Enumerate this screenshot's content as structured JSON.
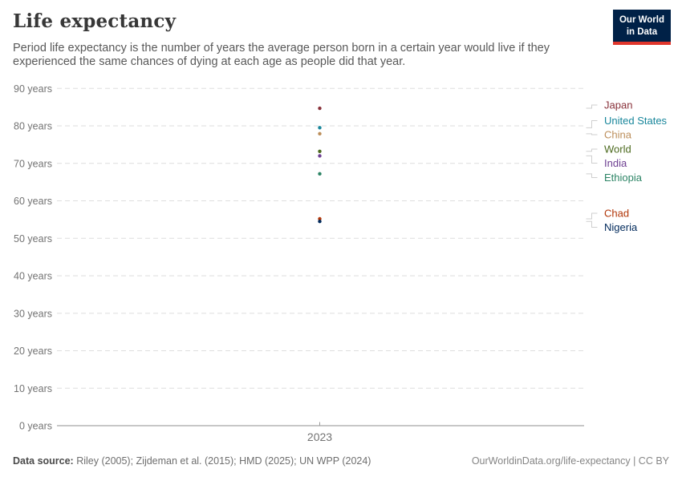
{
  "header": {
    "title": "Life expectancy",
    "subtitle": "Period life expectancy is the number of years the average person born in a certain year would live if they experienced the same chances of dying at each age as people did that year.",
    "logo": {
      "line1": "Our World",
      "line2": "in Data",
      "bg_color": "#002147",
      "accent_color": "#E0362C"
    }
  },
  "chart_data": {
    "type": "scatter",
    "title": "Life expectancy",
    "x": [
      2023
    ],
    "x_tick_label": "2023",
    "yticks": [
      0,
      10,
      20,
      30,
      40,
      50,
      60,
      70,
      80,
      90
    ],
    "ytick_suffix": " years",
    "ylim": [
      0,
      90
    ],
    "grid": "horizontal dashed",
    "legend_position": "right-entity-labels",
    "series": [
      {
        "name": "Japan",
        "value": 84.7,
        "color": "#883039"
      },
      {
        "name": "United States",
        "value": 79.5,
        "color": "#18869B"
      },
      {
        "name": "China",
        "value": 77.9,
        "color": "#BC8E5A"
      },
      {
        "name": "World",
        "value": 73.2,
        "color": "#4C6A1F"
      },
      {
        "name": "India",
        "value": 72.0,
        "color": "#6D3E91"
      },
      {
        "name": "Ethiopia",
        "value": 67.2,
        "color": "#2C8465"
      },
      {
        "name": "Chad",
        "value": 55.2,
        "color": "#B13507"
      },
      {
        "name": "Nigeria",
        "value": 54.5,
        "color": "#00295B"
      }
    ]
  },
  "footer": {
    "source_label": "Data source:",
    "source_text": " Riley (2005); Zijdeman et al. (2015); HMD (2025); UN WPP (2024)",
    "credit": "OurWorldinData.org/life-expectancy | CC BY"
  }
}
